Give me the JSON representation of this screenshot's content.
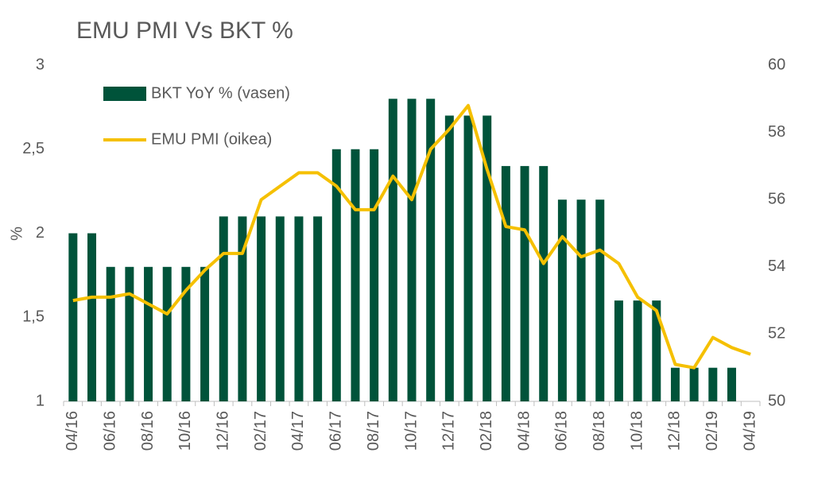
{
  "chart_data": {
    "type": "bar-line",
    "title": "EMU PMI Vs BKT %",
    "y_label": "%",
    "categories": [
      "04/16",
      null,
      "06/16",
      null,
      "08/16",
      null,
      "10/16",
      null,
      "12/16",
      null,
      "02/17",
      null,
      "04/17",
      null,
      "06/17",
      null,
      "08/17",
      null,
      "10/17",
      null,
      "12/17",
      null,
      "02/18",
      null,
      "04/18",
      null,
      "06/18",
      null,
      "08/18",
      null,
      "10/18",
      null,
      "12/18",
      null,
      "02/19",
      null,
      "04/19"
    ],
    "series": [
      {
        "name": "BKT YoY % (vasen)",
        "type": "bar",
        "axis": "y",
        "color": "#00533a",
        "values": [
          2,
          2,
          1.8,
          1.8,
          1.8,
          1.8,
          1.8,
          1.8,
          2.1,
          2.1,
          2.1,
          2.1,
          2.1,
          2.1,
          2.5,
          2.5,
          2.5,
          2.8,
          2.8,
          2.8,
          2.7,
          2.7,
          2.7,
          2.4,
          2.4,
          2.4,
          2.2,
          2.2,
          2.2,
          1.6,
          1.6,
          1.6,
          1.2,
          1.2,
          1.2,
          1.2,
          null
        ]
      },
      {
        "name": "EMU PMI (oikea)",
        "type": "line",
        "axis": "y2",
        "color": "#f5c000",
        "values": [
          53.0,
          53.1,
          53.1,
          53.2,
          52.9,
          52.6,
          53.3,
          53.9,
          54.4,
          54.4,
          56.0,
          56.4,
          56.8,
          56.8,
          56.4,
          55.7,
          55.7,
          56.7,
          56.0,
          57.5,
          58.1,
          58.8,
          56.9,
          55.2,
          55.1,
          54.1,
          54.9,
          54.3,
          54.5,
          54.1,
          53.1,
          52.7,
          51.1,
          51.0,
          51.9,
          51.6,
          51.4
        ]
      }
    ],
    "ylim": [
      1,
      3
    ],
    "yticks": [
      1,
      {
        "value": 1.5,
        "label": "1,5"
      },
      2,
      {
        "value": 2.5,
        "label": "2,5"
      },
      3
    ],
    "y2lim": [
      50,
      60
    ],
    "y2ticks": [
      50,
      52,
      54,
      56,
      58,
      60
    ],
    "legend": "upper left"
  }
}
